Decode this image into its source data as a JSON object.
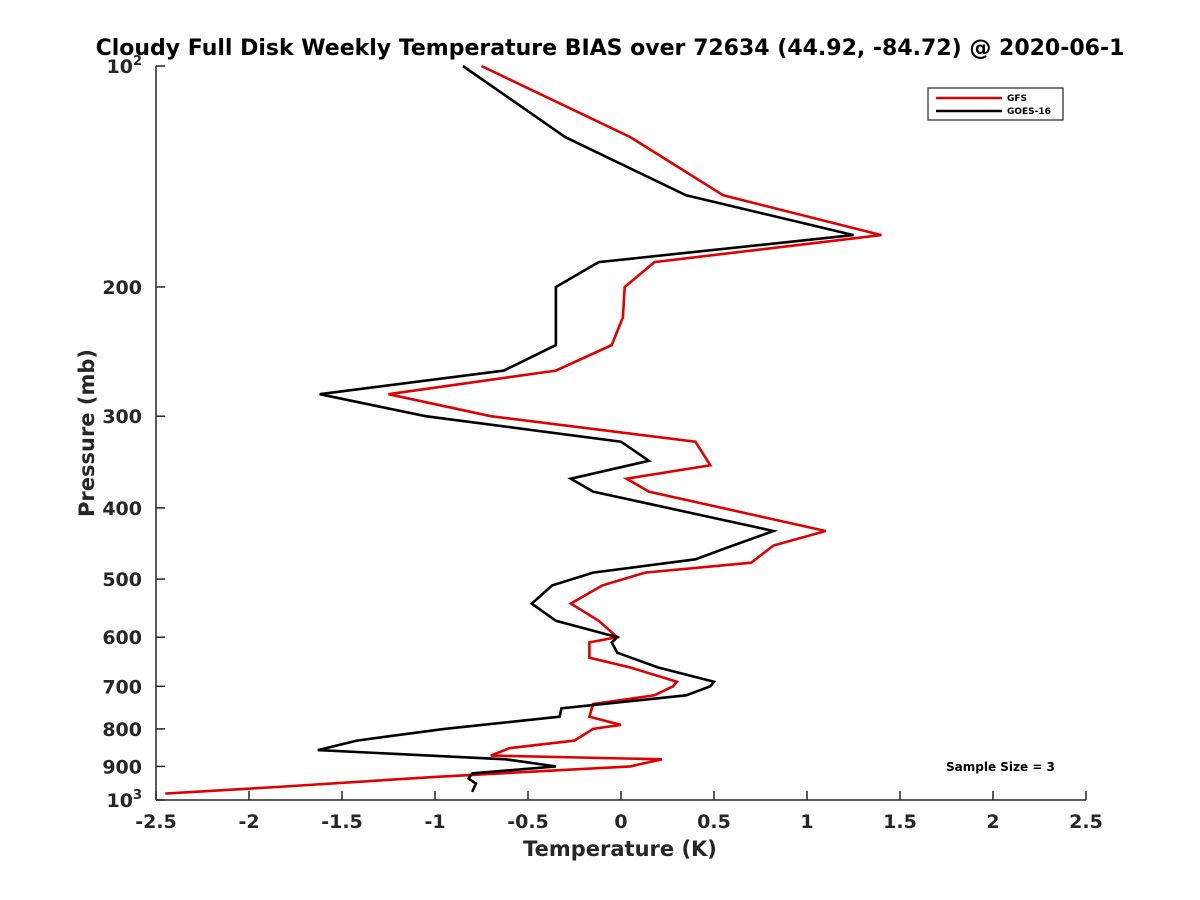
{
  "chart_data": {
    "type": "line",
    "title": "Cloudy Full Disk Weekly Temperature BIAS over 72634 (44.92, -84.72) @ 2020-06-1",
    "xlabel": "Temperature (K)",
    "ylabel": "Pressure (mb)",
    "xlim": [
      -2.5,
      2.5
    ],
    "ylim": [
      100,
      1000
    ],
    "y_scale": "log",
    "y_reversed": true,
    "grid": false,
    "legend_position": "top-right",
    "x_ticks": [
      "-2.5",
      "-2",
      "-1.5",
      "-1",
      "-0.5",
      "0",
      "0.5",
      "1",
      "1.5",
      "2",
      "2.5"
    ],
    "y_tick_values": [
      100,
      200,
      300,
      400,
      500,
      600,
      700,
      800,
      900,
      1000
    ],
    "y_ticks": [
      {
        "base": "10",
        "exp": "2"
      },
      {
        "text": "200"
      },
      {
        "text": "300"
      },
      {
        "text": "400"
      },
      {
        "text": "500"
      },
      {
        "text": "600"
      },
      {
        "text": "700"
      },
      {
        "text": "800"
      },
      {
        "text": "900"
      },
      {
        "base": "10",
        "exp": "3"
      }
    ],
    "annotation": "Sample Size = 3",
    "series": [
      {
        "name": "GFS",
        "color": "#e00000",
        "points": [
          [
            -0.75,
            100
          ],
          [
            0.05,
            125
          ],
          [
            0.55,
            150
          ],
          [
            1.4,
            170
          ],
          [
            0.18,
            185
          ],
          [
            0.02,
            200
          ],
          [
            0.01,
            220
          ],
          [
            -0.05,
            240
          ],
          [
            -0.35,
            260
          ],
          [
            -1.25,
            280
          ],
          [
            -0.7,
            300
          ],
          [
            0.4,
            325
          ],
          [
            0.48,
            350
          ],
          [
            0.03,
            365
          ],
          [
            0.15,
            380
          ],
          [
            1.1,
            430
          ],
          [
            0.82,
            450
          ],
          [
            0.7,
            475
          ],
          [
            0.13,
            490
          ],
          [
            -0.1,
            510
          ],
          [
            -0.27,
            540
          ],
          [
            -0.12,
            570
          ],
          [
            -0.02,
            600
          ],
          [
            -0.17,
            610
          ],
          [
            -0.17,
            640
          ],
          [
            0.05,
            660
          ],
          [
            0.3,
            690
          ],
          [
            0.28,
            700
          ],
          [
            0.18,
            720
          ],
          [
            -0.15,
            740
          ],
          [
            -0.17,
            770
          ],
          [
            0.0,
            790
          ],
          [
            -0.15,
            800
          ],
          [
            -0.25,
            830
          ],
          [
            -0.6,
            850
          ],
          [
            -0.7,
            870
          ],
          [
            0.22,
            880
          ],
          [
            0.05,
            900
          ],
          [
            -1.0,
            930
          ],
          [
            -1.85,
            960
          ],
          [
            -2.45,
            980
          ]
        ]
      },
      {
        "name": "GOES-16",
        "color": "#000000",
        "points": [
          [
            -0.85,
            100
          ],
          [
            -0.3,
            125
          ],
          [
            0.35,
            150
          ],
          [
            1.25,
            170
          ],
          [
            -0.12,
            185
          ],
          [
            -0.35,
            200
          ],
          [
            -0.35,
            220
          ],
          [
            -0.35,
            240
          ],
          [
            -0.63,
            260
          ],
          [
            -1.62,
            280
          ],
          [
            -1.05,
            300
          ],
          [
            0.0,
            325
          ],
          [
            0.15,
            345
          ],
          [
            -0.27,
            365
          ],
          [
            -0.15,
            380
          ],
          [
            0.82,
            430
          ],
          [
            0.55,
            455
          ],
          [
            0.4,
            470
          ],
          [
            -0.15,
            490
          ],
          [
            -0.37,
            510
          ],
          [
            -0.48,
            540
          ],
          [
            -0.35,
            570
          ],
          [
            -0.02,
            600
          ],
          [
            -0.05,
            610
          ],
          [
            -0.02,
            630
          ],
          [
            0.2,
            660
          ],
          [
            0.5,
            690
          ],
          [
            0.48,
            700
          ],
          [
            0.35,
            720
          ],
          [
            -0.32,
            750
          ],
          [
            -0.33,
            770
          ],
          [
            -0.95,
            800
          ],
          [
            -1.42,
            830
          ],
          [
            -1.63,
            855
          ],
          [
            -0.62,
            880
          ],
          [
            -0.35,
            900
          ],
          [
            -0.8,
            920
          ],
          [
            -0.82,
            935
          ],
          [
            -0.78,
            950
          ],
          [
            -0.8,
            975
          ]
        ]
      }
    ]
  }
}
